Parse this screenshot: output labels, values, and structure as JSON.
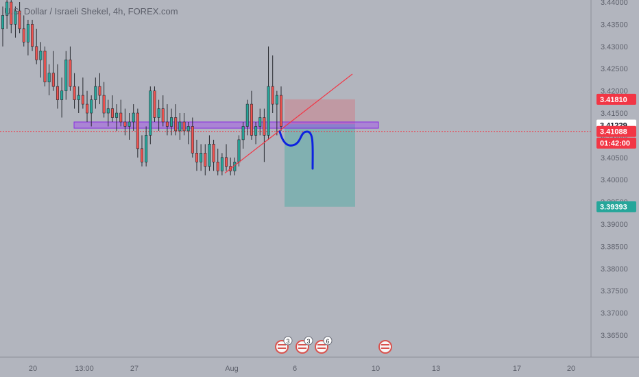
{
  "header": {
    "title": "U.S. Dollar / Israeli Shekel, 4h, FOREX.com"
  },
  "colors": {
    "background": "#b2b5be",
    "up": "#26a69a",
    "down": "#ef5350",
    "wick": "#26282e",
    "text": "#5d606b",
    "zone_fill": "rgba(156,39,255,0.35)",
    "zone_stroke": "#8a2be2",
    "trendline": "#f23645",
    "projection": "#0d22e0",
    "stop_box": "rgba(242,54,69,0.22)",
    "target_box": "rgba(38,166,154,0.35)",
    "price_line": "#f23645"
  },
  "chart_data": {
    "type": "candlestick",
    "symbol": "U.S. Dollar / Israeli Shekel",
    "interval": "4h",
    "exchange": "FOREX.com",
    "ylim": [
      3.3628,
      3.4405
    ],
    "y_ticks": [
      "3.44000",
      "3.43500",
      "3.43000",
      "3.42500",
      "3.42000",
      "3.41500",
      "3.41000",
      "3.40500",
      "3.40000",
      "3.39500",
      "3.39000",
      "3.38500",
      "3.38000",
      "3.37500",
      "3.37000",
      "3.36500"
    ],
    "x_ticks": [
      "20",
      "13:00",
      "27",
      "Aug",
      "6",
      "10",
      "13",
      "17",
      "20"
    ],
    "candles": [
      [
        3.434,
        3.439,
        3.43,
        3.437
      ],
      [
        3.437,
        3.442,
        3.434,
        3.44
      ],
      [
        3.44,
        3.441,
        3.433,
        3.435
      ],
      [
        3.435,
        3.439,
        3.432,
        3.438
      ],
      [
        3.438,
        3.44,
        3.433,
        3.434
      ],
      [
        3.434,
        3.437,
        3.43,
        3.431
      ],
      [
        3.431,
        3.436,
        3.428,
        3.435
      ],
      [
        3.435,
        3.436,
        3.429,
        3.43
      ],
      [
        3.43,
        3.434,
        3.426,
        3.427
      ],
      [
        3.427,
        3.431,
        3.423,
        3.429
      ],
      [
        3.429,
        3.43,
        3.421,
        3.422
      ],
      [
        3.422,
        3.426,
        3.419,
        3.424
      ],
      [
        3.424,
        3.429,
        3.42,
        3.421
      ],
      [
        3.421,
        3.426,
        3.416,
        3.418
      ],
      [
        3.418,
        3.423,
        3.414,
        3.42
      ],
      [
        3.42,
        3.429,
        3.418,
        3.427
      ],
      [
        3.427,
        3.43,
        3.42,
        3.421
      ],
      [
        3.421,
        3.424,
        3.416,
        3.418
      ],
      [
        3.418,
        3.421,
        3.415,
        3.419
      ],
      [
        3.419,
        3.423,
        3.416,
        3.417
      ],
      [
        3.417,
        3.42,
        3.413,
        3.415
      ],
      [
        3.415,
        3.419,
        3.412,
        3.418
      ],
      [
        3.418,
        3.423,
        3.416,
        3.421
      ],
      [
        3.421,
        3.424,
        3.417,
        3.419
      ],
      [
        3.419,
        3.422,
        3.414,
        3.415
      ],
      [
        3.415,
        3.418,
        3.412,
        3.416
      ],
      [
        3.416,
        3.419,
        3.413,
        3.414
      ],
      [
        3.414,
        3.417,
        3.411,
        3.415
      ],
      [
        3.415,
        3.418,
        3.412,
        3.413
      ],
      [
        3.413,
        3.416,
        3.41,
        3.412
      ],
      [
        3.412,
        3.415,
        3.409,
        3.413
      ],
      [
        3.413,
        3.417,
        3.411,
        3.415
      ],
      [
        3.415,
        3.416,
        3.405,
        3.407
      ],
      [
        3.407,
        3.41,
        3.403,
        3.404
      ],
      [
        3.404,
        3.412,
        3.403,
        3.41
      ],
      [
        3.41,
        3.421,
        3.408,
        3.42
      ],
      [
        3.42,
        3.421,
        3.413,
        3.414
      ],
      [
        3.414,
        3.418,
        3.411,
        3.416
      ],
      [
        3.416,
        3.419,
        3.412,
        3.413
      ],
      [
        3.413,
        3.417,
        3.41,
        3.412
      ],
      [
        3.412,
        3.416,
        3.41,
        3.414
      ],
      [
        3.414,
        3.417,
        3.41,
        3.411
      ],
      [
        3.411,
        3.415,
        3.409,
        3.413
      ],
      [
        3.413,
        3.415,
        3.41,
        3.411
      ],
      [
        3.411,
        3.413,
        3.408,
        3.412
      ],
      [
        3.412,
        3.414,
        3.405,
        3.406
      ],
      [
        3.406,
        3.409,
        3.402,
        3.404
      ],
      [
        3.404,
        3.408,
        3.402,
        3.406
      ],
      [
        3.406,
        3.408,
        3.401,
        3.403
      ],
      [
        3.403,
        3.41,
        3.402,
        3.408
      ],
      [
        3.408,
        3.409,
        3.402,
        3.404
      ],
      [
        3.404,
        3.407,
        3.401,
        3.402
      ],
      [
        3.402,
        3.406,
        3.401,
        3.405
      ],
      [
        3.405,
        3.408,
        3.402,
        3.403
      ],
      [
        3.403,
        3.405,
        3.401,
        3.402
      ],
      [
        3.402,
        3.405,
        3.401,
        3.404
      ],
      [
        3.404,
        3.41,
        3.403,
        3.409
      ],
      [
        3.409,
        3.413,
        3.407,
        3.412
      ],
      [
        3.412,
        3.418,
        3.41,
        3.417
      ],
      [
        3.417,
        3.42,
        3.409,
        3.41
      ],
      [
        3.41,
        3.413,
        3.408,
        3.412
      ],
      [
        3.412,
        3.416,
        3.41,
        3.414
      ],
      [
        3.414,
        3.416,
        3.404,
        3.41
      ],
      [
        3.41,
        3.43,
        3.409,
        3.421
      ],
      [
        3.421,
        3.428,
        3.415,
        3.417
      ],
      [
        3.417,
        3.42,
        3.41,
        3.419
      ],
      [
        3.419,
        3.421,
        3.411,
        3.412
      ]
    ],
    "annotations": {
      "symbol_labels": [
        "3",
        "3",
        "6"
      ],
      "price_labels": [
        {
          "value": 3.4181,
          "text": "3.41810",
          "color": "#f23645"
        },
        {
          "value": 3.41229,
          "text": "3.41229",
          "color": "#ffffff"
        },
        {
          "value": 3.41088,
          "text": "3.41088",
          "color": "#f23645"
        },
        {
          "value": 3.39393,
          "text": "3.39393",
          "color": "#26a69a"
        }
      ],
      "countdown": "01:42:00",
      "support_zone": [
        3.4116,
        3.413
      ],
      "trendline": [
        [
          3.4015
        ],
        [
          3.4238
        ]
      ],
      "stop_box": [
        3.4181,
        3.4125
      ],
      "target_box": [
        3.4125,
        3.3939
      ]
    }
  }
}
